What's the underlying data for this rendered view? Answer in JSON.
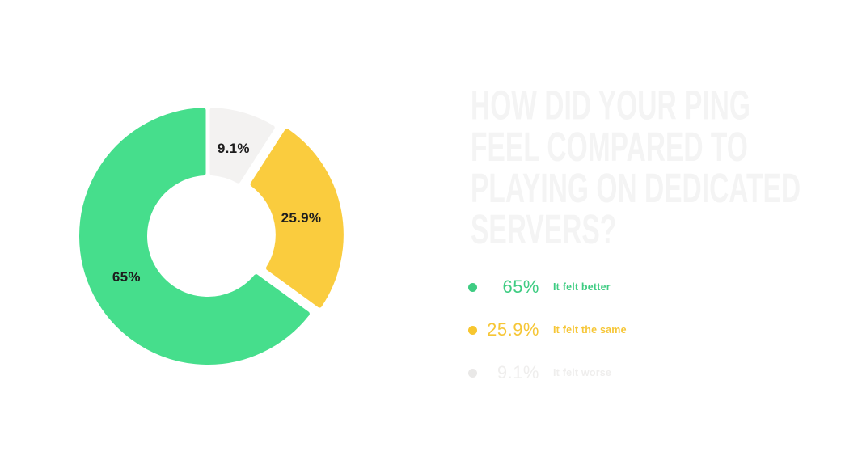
{
  "page": {
    "background_color": "#ffffff"
  },
  "title": {
    "text": "HOW DID YOUR PING FEEL COMPARED TO PLAYING ON DEDICATED SERVERS?",
    "lines": [
      "HOW DID YOUR PING",
      "FEEL COMPARED TO",
      "PLAYING ON DEDICATED",
      "SERVERS?"
    ],
    "color": "#f4f4f4"
  },
  "chart_data": {
    "type": "pie",
    "variant": "donut",
    "title": "How did your ping feel compared to playing on dedicated servers?",
    "start_angle_deg": 0,
    "direction": "clockwise",
    "slices": [
      {
        "label": "It felt worse",
        "value": 9.1,
        "display": "9.1%",
        "color": "#f3f2f1",
        "label_color": "#1d1d1d",
        "exploded": false
      },
      {
        "label": "It felt the same",
        "value": 25.9,
        "display": "25.9%",
        "color": "#facc3e",
        "label_color": "#1d1d1d",
        "exploded": true
      },
      {
        "label": "It felt better",
        "value": 65.0,
        "display": "65%",
        "color": "#46de8c",
        "label_color": "#1d1d1d",
        "exploded": false
      }
    ],
    "legend_position": "right"
  },
  "legend": {
    "items": [
      {
        "pct": "65%",
        "label": "It felt better",
        "dot_color": "#3ecc82",
        "text_color": "#3ecc82"
      },
      {
        "pct": "25.9%",
        "label": "It felt the same",
        "dot_color": "#f7c62f",
        "text_color": "#f6c636"
      },
      {
        "pct": "9.1%",
        "label": "It felt worse",
        "dot_color": "#e9e8e7",
        "text_color": "#efeeed"
      }
    ]
  }
}
